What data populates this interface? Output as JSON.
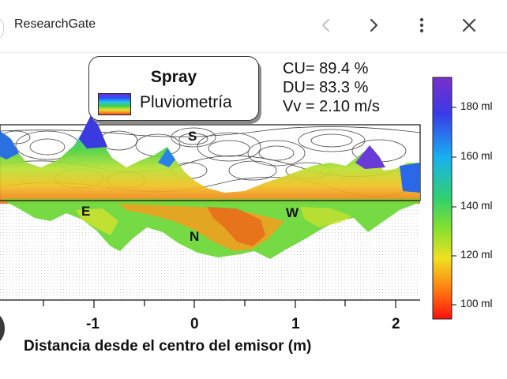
{
  "header": {
    "site_title": "ResearchGate",
    "icons": [
      "chevron-left-icon",
      "chevron-right-icon",
      "more-vert-icon",
      "close-icon"
    ]
  },
  "figure": {
    "legend": {
      "title": "Spray",
      "label": "Pluviometría"
    },
    "stats": {
      "cu": "CU= 89.4 %",
      "du": "DU= 83.3 %",
      "vv": "Vv = 2.10 m/s"
    },
    "colorbar": {
      "labels": [
        "180 ml",
        "160 ml",
        "140 ml",
        "120 ml",
        "100 ml"
      ],
      "colors": [
        "#6a2fd8",
        "#2a55ff",
        "#25c4e8",
        "#3ad04a",
        "#e8e030",
        "#ff4a1a",
        "#ff1a10"
      ]
    },
    "directions": {
      "s": "S",
      "e": "E",
      "w": "W",
      "n": "N"
    },
    "x_ticks": [
      "-1",
      "0",
      "1",
      "2"
    ],
    "x_axis_title": "Distancia desde el centro del emisor (m)"
  }
}
